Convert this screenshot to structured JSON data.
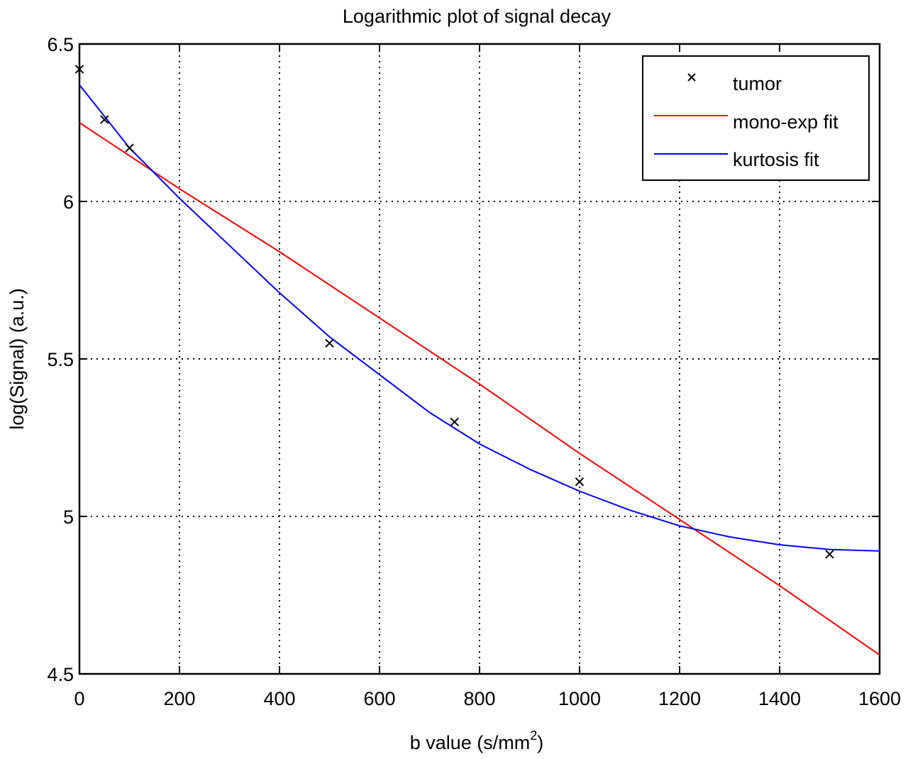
{
  "chart_data": {
    "type": "line",
    "title": "Logarithmic plot of signal decay",
    "xlabel": "b value (s/mm",
    "xlabel_superscript": "2",
    "xlabel_suffix": ")",
    "ylabel": "log(Signal) (a.u.)",
    "xlim": [
      0,
      1600
    ],
    "ylim": [
      4.5,
      6.5
    ],
    "xticks": [
      0,
      200,
      400,
      600,
      800,
      1000,
      1200,
      1400,
      1600
    ],
    "yticks": [
      4.5,
      5,
      5.5,
      6,
      6.5
    ],
    "xtick_labels": [
      "0",
      "200",
      "400",
      "600",
      "800",
      "1000",
      "1200",
      "1400",
      "1600"
    ],
    "ytick_labels": [
      "4.5",
      "5",
      "5.5",
      "6",
      "6.5"
    ],
    "grid": true,
    "legend_position": "top-right",
    "series": [
      {
        "name": "tumor",
        "kind": "markers",
        "marker": "x",
        "color": "#000000",
        "x": [
          0,
          50,
          100,
          500,
          750,
          1000,
          1500
        ],
        "y": [
          6.42,
          6.26,
          6.17,
          5.55,
          5.3,
          5.11,
          4.88
        ]
      },
      {
        "name": "mono-exp fit",
        "kind": "line",
        "color": "#ff0000",
        "x": [
          0,
          200,
          400,
          600,
          800,
          1000,
          1200,
          1400,
          1600
        ],
        "y": [
          6.25,
          6.04,
          5.84,
          5.63,
          5.42,
          5.2,
          4.99,
          4.78,
          4.56
        ]
      },
      {
        "name": "kurtosis fit",
        "kind": "line",
        "color": "#0000ff",
        "x": [
          0,
          50,
          100,
          150,
          200,
          300,
          400,
          500,
          600,
          700,
          800,
          900,
          1000,
          1100,
          1200,
          1300,
          1400,
          1500,
          1600
        ],
        "y": [
          6.37,
          6.27,
          6.17,
          6.09,
          6.01,
          5.86,
          5.71,
          5.57,
          5.45,
          5.33,
          5.23,
          5.15,
          5.08,
          5.02,
          4.97,
          4.935,
          4.91,
          4.895,
          4.89
        ]
      }
    ]
  }
}
